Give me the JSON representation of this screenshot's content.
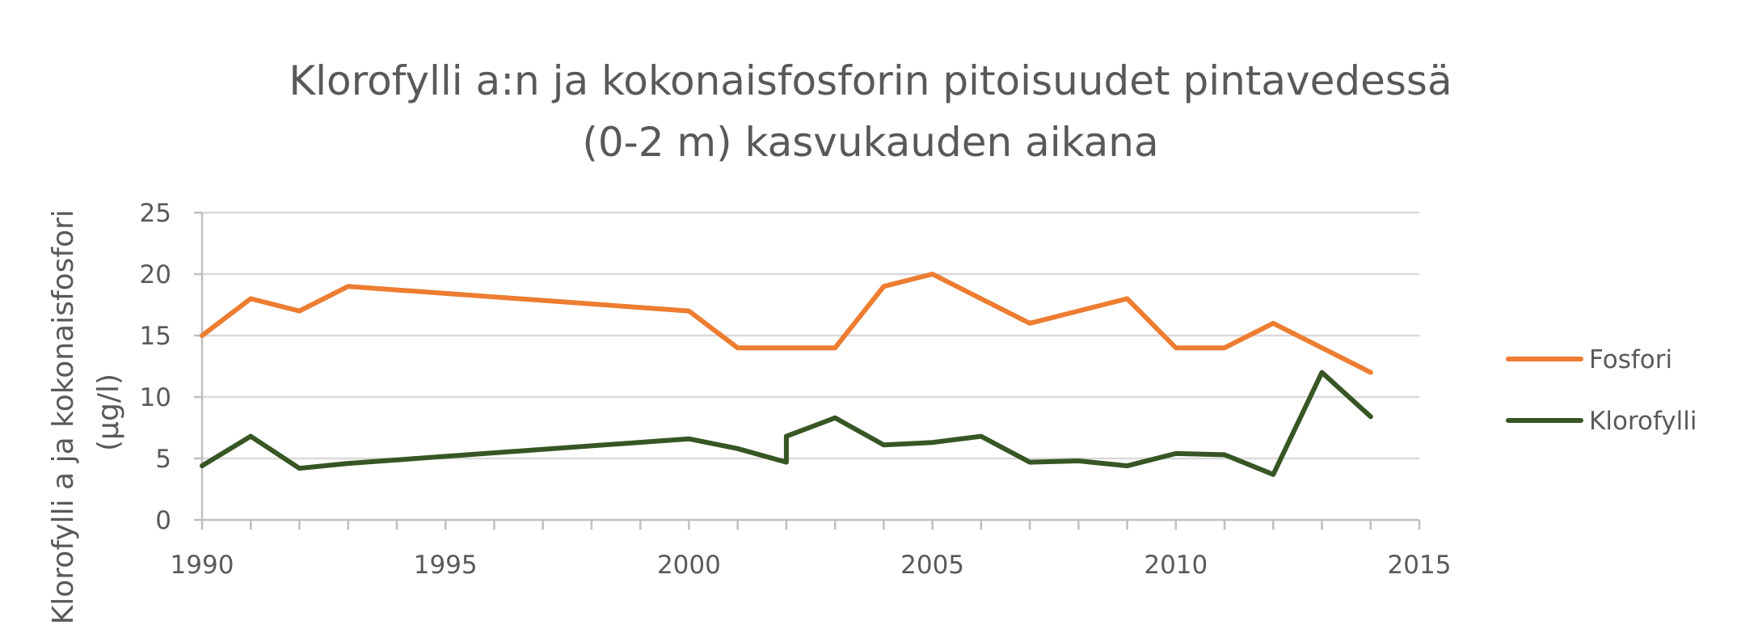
{
  "chart_data": {
    "type": "line",
    "title": "Klorofylli a:n ja kokonaisfosforin pitoisuudet pintavedessä (0-2 m) kasvukauden aikana",
    "title_lines": [
      "Klorofylli a:n ja kokonaisfosforin pitoisuudet pintavedessä",
      "(0-2 m) kasvukauden aikana"
    ],
    "ylabel": "Klorofylli a ja kokonaisfosfori (µg/l)",
    "ylabel_lines": [
      "Klorofylli a ja kokonaisfosfori",
      "(µg/l)"
    ],
    "xlabel": "",
    "xlim": [
      1990,
      2015
    ],
    "ylim": [
      0,
      25
    ],
    "x_ticks": [
      1990,
      1995,
      2000,
      2005,
      2010,
      2015
    ],
    "y_ticks": [
      0,
      5,
      10,
      15,
      20,
      25
    ],
    "grid": true,
    "legend_position": "right",
    "series": [
      {
        "name": "Fosfori",
        "color": "#ED7D31",
        "x": [
          1990,
          1991,
          1992,
          1993,
          2000,
          2001,
          2002,
          2003,
          2004,
          2005,
          2006,
          2007,
          2008,
          2009,
          2010,
          2011,
          2012,
          2013,
          2014
        ],
        "y": [
          15,
          18,
          17,
          19,
          17,
          14,
          14,
          14,
          19,
          20,
          18,
          16,
          17,
          18,
          14,
          14,
          16,
          14,
          12
        ]
      },
      {
        "name": "Klorofylli",
        "color": "#375623",
        "x": [
          1990,
          1991,
          1992,
          1993,
          2000,
          2001,
          2002,
          2002,
          2003,
          2004,
          2005,
          2006,
          2007,
          2008,
          2009,
          2010,
          2011,
          2012,
          2013,
          2014
        ],
        "y": [
          4.4,
          6.8,
          4.2,
          4.6,
          6.6,
          5.8,
          4.7,
          6.8,
          8.3,
          6.1,
          6.3,
          6.8,
          4.7,
          4.8,
          4.4,
          5.4,
          5.3,
          3.7,
          12.0,
          8.4
        ]
      }
    ]
  }
}
